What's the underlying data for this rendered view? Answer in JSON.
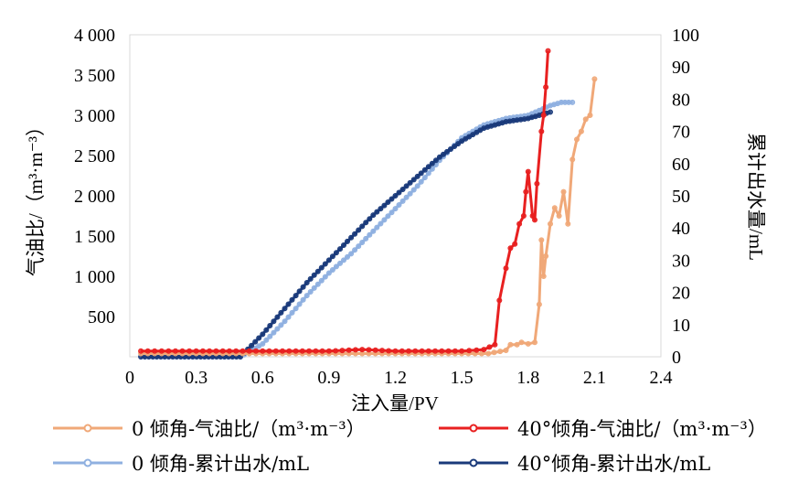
{
  "chart_data": {
    "type": "line",
    "title": "",
    "xlabel": "注入量/PV",
    "ylabel_left": "气油比/（m³·m⁻³）",
    "ylabel_right": "累计出水量/mL",
    "xlim": [
      0,
      2.4
    ],
    "ylim_left": [
      0,
      4000
    ],
    "ylim_right": [
      0,
      100
    ],
    "x_ticks": [
      "0",
      "0.3",
      "0.6",
      "0.9",
      "1.2",
      "1.5",
      "1.8",
      "2.1",
      "2.4"
    ],
    "y_left_ticks": [
      "500",
      "1 000",
      "1 500",
      "2 000",
      "2 500",
      "3 000",
      "3 500",
      "4 000"
    ],
    "y_right_ticks": [
      "0",
      "10",
      "20",
      "30",
      "40",
      "50",
      "60",
      "70",
      "80",
      "90",
      "100"
    ],
    "grid": false,
    "legend_position": "bottom",
    "series": [
      {
        "name": "0 倾角-气油比/（m³·m⁻³）",
        "axis": "left",
        "color": "#f0a878",
        "x": [
          0.05,
          0.3,
          0.6,
          0.9,
          1.2,
          1.5,
          1.62,
          1.7,
          1.72,
          1.75,
          1.77,
          1.8,
          1.83,
          1.85,
          1.86,
          1.87,
          1.88,
          1.9,
          1.92,
          1.94,
          1.96,
          1.98,
          2.0,
          2.02,
          2.04,
          2.06,
          2.08,
          2.1
        ],
        "y": [
          40,
          40,
          40,
          40,
          40,
          40,
          40,
          80,
          150,
          150,
          180,
          160,
          180,
          650,
          1450,
          1000,
          1250,
          1650,
          1850,
          1750,
          2050,
          1650,
          2450,
          2700,
          2800,
          2950,
          3000,
          3450
        ]
      },
      {
        "name": "40°倾角-气油比/（m³·m⁻³）",
        "axis": "left",
        "color": "#e82020",
        "x": [
          0.05,
          0.3,
          0.6,
          0.9,
          1.05,
          1.2,
          1.5,
          1.6,
          1.65,
          1.67,
          1.7,
          1.72,
          1.74,
          1.76,
          1.78,
          1.79,
          1.8,
          1.82,
          1.83,
          1.84,
          1.86,
          1.87,
          1.88,
          1.89
        ],
        "y": [
          70,
          70,
          70,
          70,
          90,
          70,
          70,
          90,
          150,
          700,
          1100,
          1350,
          1400,
          1650,
          1750,
          2050,
          2300,
          1750,
          1700,
          2150,
          2800,
          3000,
          3350,
          3800
        ]
      },
      {
        "name": "0 倾角-累计出水/mL",
        "axis": "right",
        "color": "#8fb0e0",
        "x": [
          0.05,
          0.5,
          0.6,
          0.7,
          0.8,
          0.9,
          1.0,
          1.1,
          1.2,
          1.3,
          1.4,
          1.5,
          1.6,
          1.7,
          1.8,
          1.9,
          1.95,
          2.0
        ],
        "y": [
          0,
          0,
          4,
          11,
          19,
          26,
          32,
          39,
          46,
          53,
          61,
          68,
          72,
          74,
          75,
          78,
          79,
          79
        ]
      },
      {
        "name": "40°倾角-累计出水/mL",
        "axis": "right",
        "color": "#1a3a7a",
        "x": [
          0.05,
          0.5,
          0.6,
          0.7,
          0.8,
          0.9,
          1.0,
          1.1,
          1.2,
          1.3,
          1.4,
          1.5,
          1.6,
          1.7,
          1.8,
          1.85,
          1.9
        ],
        "y": [
          0,
          0,
          7,
          15,
          23,
          30,
          37,
          44,
          50,
          56,
          62,
          67,
          71,
          73,
          74,
          75,
          76
        ]
      }
    ]
  }
}
